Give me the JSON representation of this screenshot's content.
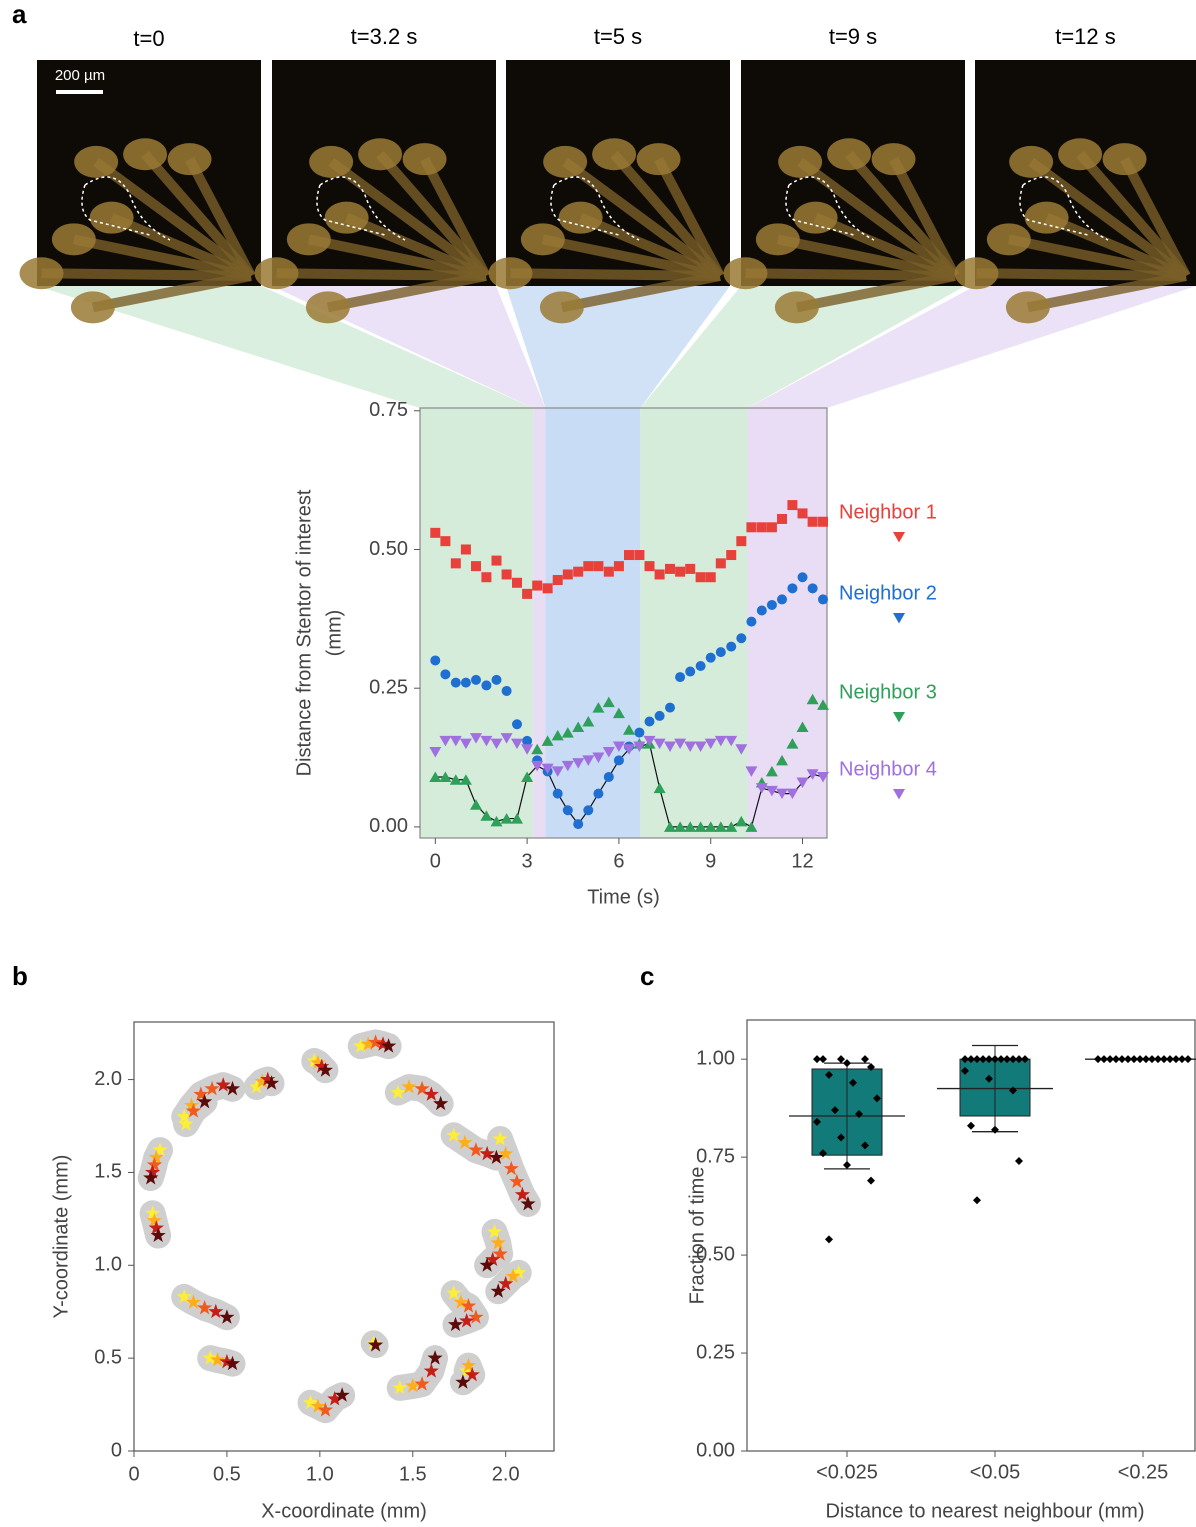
{
  "panel_labels": [
    "a",
    "b",
    "c"
  ],
  "images": {
    "frames": [
      {
        "title": "t=0"
      },
      {
        "title": "t=3.2 s"
      },
      {
        "title": "t=5 s"
      },
      {
        "title": "t=9 s"
      },
      {
        "title": "t=12 s"
      }
    ],
    "scale_bar": "200 µm"
  },
  "chart_data": [
    {
      "type": "scatter",
      "xlabel": "Time (s)",
      "ylabel": [
        "Distance from Stentor of interest",
        "(mm)"
      ],
      "xlim": [
        -0.5,
        12.8
      ],
      "ylim": [
        -0.02,
        0.755
      ],
      "xticks": [
        0,
        3,
        6,
        9,
        12
      ],
      "yticks": [
        {
          "value": 0,
          "label": "0.00"
        },
        {
          "value": 0.25,
          "label": "0.25"
        },
        {
          "value": 0.5,
          "label": "0.50"
        },
        {
          "value": 0.75,
          "label": "0.75"
        }
      ],
      "bands": [
        {
          "x0": -0.5,
          "x1": 3.2,
          "color": "#d5ecdb"
        },
        {
          "x0": 3.2,
          "x1": 3.6,
          "color": "#e9ddf6"
        },
        {
          "x0": 3.6,
          "x1": 6.7,
          "color": "#c9dcf5"
        },
        {
          "x0": 6.7,
          "x1": 10.2,
          "color": "#d5ecdb"
        },
        {
          "x0": 10.2,
          "x1": 12.8,
          "color": "#e9ddf6"
        }
      ],
      "legend": "right",
      "min_line": true,
      "x": [
        0,
        0.33,
        0.67,
        1,
        1.33,
        1.67,
        2,
        2.33,
        2.67,
        3,
        3.33,
        3.67,
        4,
        4.33,
        4.67,
        5,
        5.33,
        5.67,
        6,
        6.33,
        6.67,
        7,
        7.33,
        7.67,
        8,
        8.33,
        8.67,
        9,
        9.33,
        9.67,
        10,
        10.33,
        10.67,
        11,
        11.33,
        11.67,
        12,
        12.33,
        12.67
      ],
      "series": [
        {
          "name": "Neighbor 1",
          "color": "#e8403a",
          "marker": "square",
          "values": [
            0.53,
            0.515,
            0.475,
            0.5,
            0.47,
            0.45,
            0.48,
            0.455,
            0.44,
            0.42,
            0.435,
            0.43,
            0.445,
            0.455,
            0.46,
            0.47,
            0.47,
            0.46,
            0.47,
            0.49,
            0.49,
            0.47,
            0.455,
            0.465,
            0.46,
            0.465,
            0.45,
            0.45,
            0.475,
            0.49,
            0.515,
            0.54,
            0.54,
            0.54,
            0.555,
            0.58,
            0.565,
            0.55,
            0.55
          ]
        },
        {
          "name": "Neighbor 2",
          "color": "#1f6fd1",
          "marker": "circle",
          "values": [
            0.3,
            0.275,
            0.26,
            0.26,
            0.265,
            0.255,
            0.265,
            0.245,
            0.185,
            0.155,
            0.12,
            0.1,
            0.06,
            0.03,
            0.005,
            0.03,
            0.06,
            0.09,
            0.12,
            0.145,
            0.17,
            0.19,
            0.2,
            0.215,
            0.27,
            0.28,
            0.29,
            0.305,
            0.315,
            0.325,
            0.34,
            0.37,
            0.39,
            0.4,
            0.41,
            0.43,
            0.45,
            0.43,
            0.41
          ]
        },
        {
          "name": "Neighbor 3",
          "color": "#2ea05a",
          "marker": "triangle-up",
          "values": [
            0.09,
            0.09,
            0.085,
            0.085,
            0.04,
            0.02,
            0.01,
            0.015,
            0.015,
            0.09,
            0.14,
            0.155,
            0.165,
            0.17,
            0.18,
            0.19,
            0.215,
            0.225,
            0.205,
            0.175,
            0.15,
            0.15,
            0.07,
            0,
            0,
            0,
            0,
            0,
            0,
            0,
            0.01,
            0,
            0.08,
            0.1,
            0.12,
            0.15,
            0.18,
            0.23,
            0.22
          ]
        },
        {
          "name": "Neighbor 4",
          "color": "#a070e0",
          "marker": "triangle-down",
          "values": [
            0.135,
            0.155,
            0.155,
            0.15,
            0.16,
            0.155,
            0.15,
            0.16,
            0.15,
            0.14,
            0.11,
            0.105,
            0.1,
            0.11,
            0.115,
            0.12,
            0.125,
            0.135,
            0.145,
            0.14,
            0.145,
            0.155,
            0.15,
            0.145,
            0.15,
            0.145,
            0.145,
            0.15,
            0.155,
            0.155,
            0.14,
            0.1,
            0.07,
            0.065,
            0.06,
            0.06,
            0.08,
            0.095,
            0.09
          ]
        }
      ]
    },
    {
      "type": "trajectory",
      "xlabel": "X-coordinate (mm)",
      "ylabel": "Y-coordinate (mm)",
      "xlim": [
        0,
        2.26
      ],
      "ylim": [
        0,
        2.31
      ],
      "xticks": [
        0,
        0.5,
        {
          "value": 1,
          "label": "1.0"
        },
        1.5,
        {
          "value": 2,
          "label": "2.0"
        }
      ],
      "yticks": [
        0,
        0.5,
        {
          "value": 1,
          "label": "1.0"
        },
        1.5,
        {
          "value": 2,
          "label": "2.0"
        }
      ],
      "colormap": [
        "#ffee33",
        "#ffae1a",
        "#f05a1e",
        "#c41e16",
        "#5c0a0a"
      ],
      "hull_color": "#cfcfcf",
      "trajectories": [
        {
          "x": [
            1.22,
            1.26,
            1.3,
            1.34,
            1.37
          ],
          "y": [
            2.18,
            2.19,
            2.2,
            2.19,
            2.18
          ]
        },
        {
          "x": [
            0.97,
            0.99,
            1.01,
            1.03
          ],
          "y": [
            2.1,
            2.09,
            2.07,
            2.05
          ]
        },
        {
          "x": [
            0.66,
            0.69,
            0.72,
            0.74
          ],
          "y": [
            1.96,
            1.99,
            2.0,
            1.98
          ]
        },
        {
          "x": [
            0.27,
            0.31,
            0.36,
            0.42,
            0.48,
            0.53
          ],
          "y": [
            1.8,
            1.86,
            1.92,
            1.95,
            1.97,
            1.95
          ]
        },
        {
          "x": [
            0.28,
            0.32,
            0.38
          ],
          "y": [
            1.76,
            1.83,
            1.88
          ]
        },
        {
          "x": [
            1.42,
            1.48,
            1.55,
            1.6,
            1.65
          ],
          "y": [
            1.93,
            1.96,
            1.95,
            1.92,
            1.87
          ]
        },
        {
          "x": [
            0.14,
            0.12,
            0.11,
            0.1,
            0.09
          ],
          "y": [
            1.62,
            1.58,
            1.54,
            1.5,
            1.47
          ]
        },
        {
          "x": [
            0.1,
            0.11,
            0.12,
            0.13
          ],
          "y": [
            1.28,
            1.24,
            1.2,
            1.16
          ]
        },
        {
          "x": [
            1.72,
            1.78,
            1.84,
            1.9,
            1.95
          ],
          "y": [
            1.7,
            1.66,
            1.62,
            1.6,
            1.58
          ]
        },
        {
          "x": [
            1.97,
            2.0,
            2.03,
            2.06,
            2.09,
            2.12
          ],
          "y": [
            1.68,
            1.6,
            1.52,
            1.45,
            1.38,
            1.33
          ]
        },
        {
          "x": [
            1.94,
            1.96,
            1.97,
            1.93,
            1.9
          ],
          "y": [
            1.18,
            1.12,
            1.06,
            1.03,
            1.0
          ]
        },
        {
          "x": [
            2.07,
            2.04,
            2.0,
            1.96
          ],
          "y": [
            0.96,
            0.94,
            0.9,
            0.86
          ]
        },
        {
          "x": [
            1.72,
            1.76,
            1.8,
            1.84,
            1.79,
            1.73
          ],
          "y": [
            0.85,
            0.8,
            0.78,
            0.72,
            0.7,
            0.68
          ]
        },
        {
          "x": [
            0.27,
            0.32,
            0.38,
            0.44,
            0.5
          ],
          "y": [
            0.83,
            0.8,
            0.77,
            0.75,
            0.72
          ]
        },
        {
          "x": [
            0.41,
            0.45,
            0.5,
            0.53
          ],
          "y": [
            0.5,
            0.49,
            0.48,
            0.47
          ]
        },
        {
          "x": [
            1.29,
            1.3
          ],
          "y": [
            0.58,
            0.57
          ]
        },
        {
          "x": [
            1.43,
            1.5,
            1.55,
            1.6,
            1.62
          ],
          "y": [
            0.34,
            0.35,
            0.36,
            0.43,
            0.5
          ]
        },
        {
          "x": [
            1.79,
            1.8,
            1.82,
            1.77
          ],
          "y": [
            0.43,
            0.46,
            0.41,
            0.37
          ]
        },
        {
          "x": [
            0.95,
            0.99,
            1.03,
            1.08,
            1.12
          ],
          "y": [
            0.26,
            0.24,
            0.22,
            0.28,
            0.3
          ]
        }
      ]
    },
    {
      "type": "box",
      "xlabel": "Distance to nearest neighbour (mm)",
      "ylabel": "Fraction of time",
      "ylim": [
        0,
        1.1
      ],
      "yticks": [
        {
          "value": 0,
          "label": "0.00"
        },
        {
          "value": 0.25,
          "label": "0.25"
        },
        {
          "value": 0.5,
          "label": "0.50"
        },
        {
          "value": 0.75,
          "label": "0.75"
        },
        {
          "value": 1,
          "label": "1.00"
        }
      ],
      "categories": [
        "<0.025",
        "<0.05",
        "<0.25"
      ],
      "color": "#137a7a",
      "boxes": [
        {
          "q1": 0.755,
          "q3": 0.975,
          "mean": 0.855,
          "low": 0.72,
          "high": 0.99,
          "points": [
            1.0,
            1.0,
            1.0,
            1.0,
            0.99,
            0.98,
            0.96,
            0.94,
            0.9,
            0.87,
            0.86,
            0.84,
            0.8,
            0.78,
            0.76,
            0.73,
            0.69,
            0.54
          ]
        },
        {
          "q1": 0.855,
          "q3": 1.0,
          "mean": 0.925,
          "low": 0.815,
          "high": 1.035,
          "points": [
            1.0,
            1.0,
            1.0,
            1.0,
            1.0,
            1.0,
            1.0,
            1.0,
            1.0,
            1.0,
            1.0,
            0.97,
            0.95,
            0.92,
            0.83,
            0.82,
            0.74,
            0.64
          ]
        },
        {
          "q1": 1.0,
          "q3": 1.0,
          "mean": 1.0,
          "low": 1.0,
          "high": 1.0,
          "points": [
            1.0,
            1.0,
            1.0,
            1.0,
            1.0,
            1.0,
            1.0,
            1.0,
            1.0,
            1.0,
            1.0,
            1.0,
            1.0,
            1.0,
            1.0,
            1.0
          ]
        }
      ]
    }
  ]
}
